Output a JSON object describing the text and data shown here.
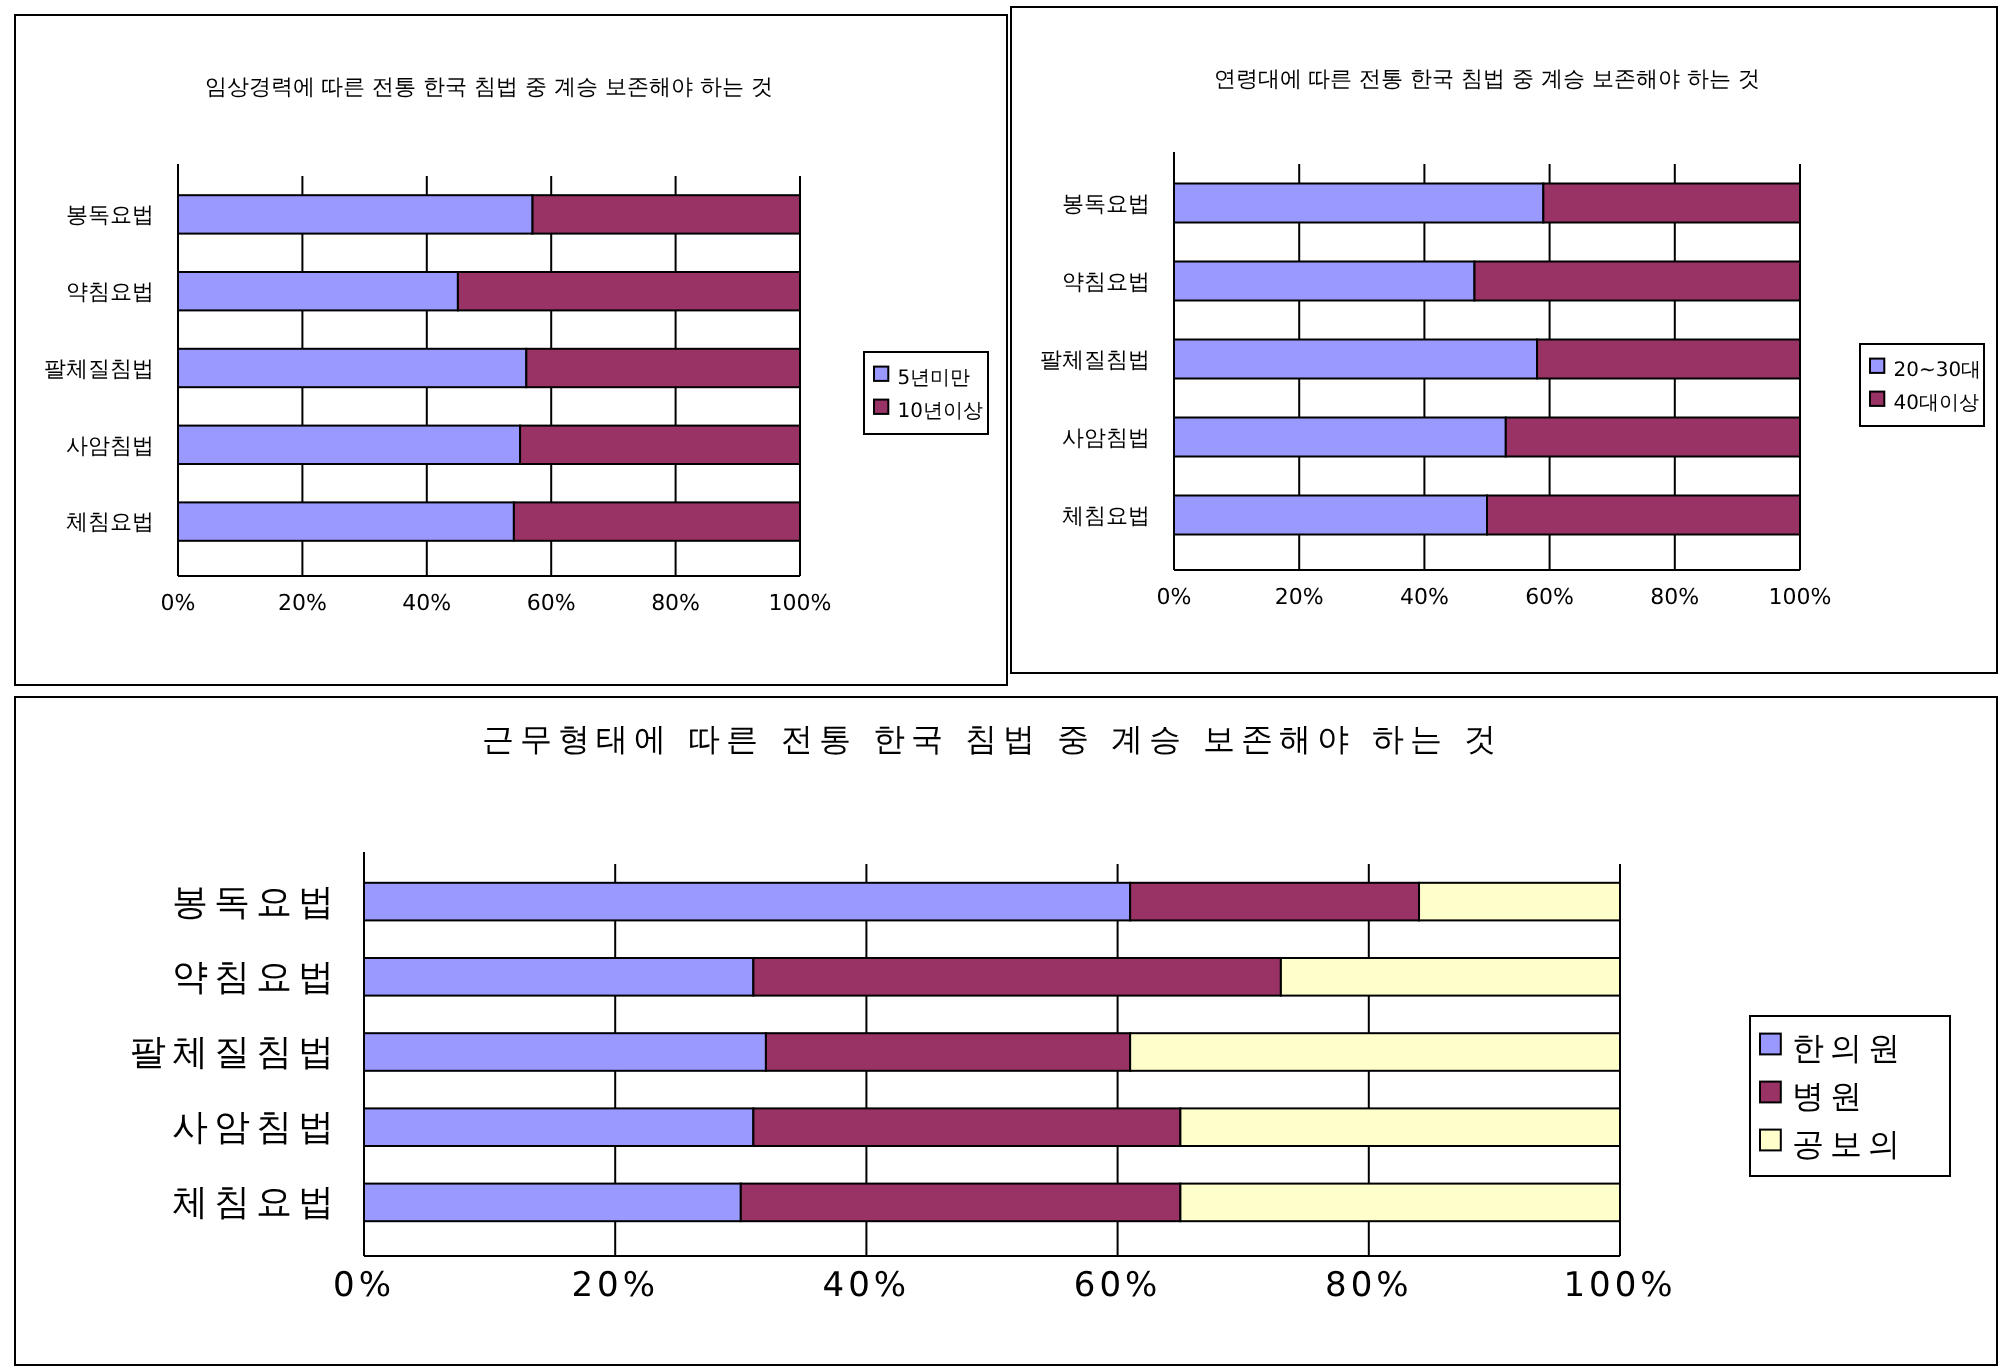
{
  "chart_data": [
    {
      "type": "bar",
      "title": "임상경력에 따른 전통 한국 침법 중 계승 보존해야 하는 것",
      "orientation": "horizontal",
      "stacked": true,
      "categories": [
        "봉독요법",
        "약침요법",
        "팔체질침법",
        "사암침법",
        "체침요법"
      ],
      "series": [
        {
          "name": "5년미만",
          "color": "#9999ff",
          "values": [
            0.57,
            0.45,
            0.56,
            0.55,
            0.54
          ]
        },
        {
          "name": "10년이상",
          "color": "#993366",
          "values": [
            0.43,
            0.55,
            0.44,
            0.45,
            0.46
          ]
        }
      ],
      "xlim": [
        0,
        1
      ],
      "xticks": [
        {
          "value": 0,
          "label": "0%"
        },
        {
          "value": 0.2,
          "label": "20%"
        },
        {
          "value": 0.4,
          "label": "40%"
        },
        {
          "value": 0.6,
          "label": "60%"
        },
        {
          "value": 0.8,
          "label": "80%"
        },
        {
          "value": 1,
          "label": "100%"
        }
      ],
      "grid": "x",
      "legend": "right"
    },
    {
      "type": "bar",
      "title": "연령대에 따른 전통 한국 침법 중 계승 보존해야 하는 것",
      "orientation": "horizontal",
      "stacked": true,
      "categories": [
        "봉독요법",
        "약침요법",
        "팔체질침법",
        "사암침법",
        "체침요법"
      ],
      "series": [
        {
          "name": "20~30대",
          "color": "#9999ff",
          "values": [
            0.59,
            0.48,
            0.58,
            0.53,
            0.5
          ]
        },
        {
          "name": "40대이상",
          "color": "#993366",
          "values": [
            0.41,
            0.52,
            0.42,
            0.47,
            0.5
          ]
        }
      ],
      "xlim": [
        0,
        1
      ],
      "xticks": [
        {
          "value": 0,
          "label": "0%"
        },
        {
          "value": 0.2,
          "label": "20%"
        },
        {
          "value": 0.4,
          "label": "40%"
        },
        {
          "value": 0.6,
          "label": "60%"
        },
        {
          "value": 0.8,
          "label": "80%"
        },
        {
          "value": 1,
          "label": "100%"
        }
      ],
      "grid": "x",
      "legend": "right"
    },
    {
      "type": "bar",
      "title": "근무형태에 따른 전통 한국 침법 중 계승 보존해야 하는 것",
      "orientation": "horizontal",
      "stacked": true,
      "categories": [
        "봉독요법",
        "약침요법",
        "팔체질침법",
        "사암침법",
        "체침요법"
      ],
      "series": [
        {
          "name": "한의원",
          "color": "#9999ff",
          "values": [
            0.61,
            0.31,
            0.32,
            0.31,
            0.3
          ]
        },
        {
          "name": "병원",
          "color": "#993366",
          "values": [
            0.23,
            0.42,
            0.29,
            0.34,
            0.35
          ]
        },
        {
          "name": "공보의",
          "color": "#ffffcc",
          "values": [
            0.16,
            0.27,
            0.39,
            0.35,
            0.35
          ]
        }
      ],
      "xlim": [
        0,
        1
      ],
      "xticks": [
        {
          "value": 0,
          "label": "0%"
        },
        {
          "value": 0.2,
          "label": "20%"
        },
        {
          "value": 0.4,
          "label": "40%"
        },
        {
          "value": 0.6,
          "label": "60%"
        },
        {
          "value": 0.8,
          "label": "80%"
        },
        {
          "value": 1,
          "label": "100%"
        }
      ],
      "grid": "x",
      "legend": "right"
    }
  ]
}
